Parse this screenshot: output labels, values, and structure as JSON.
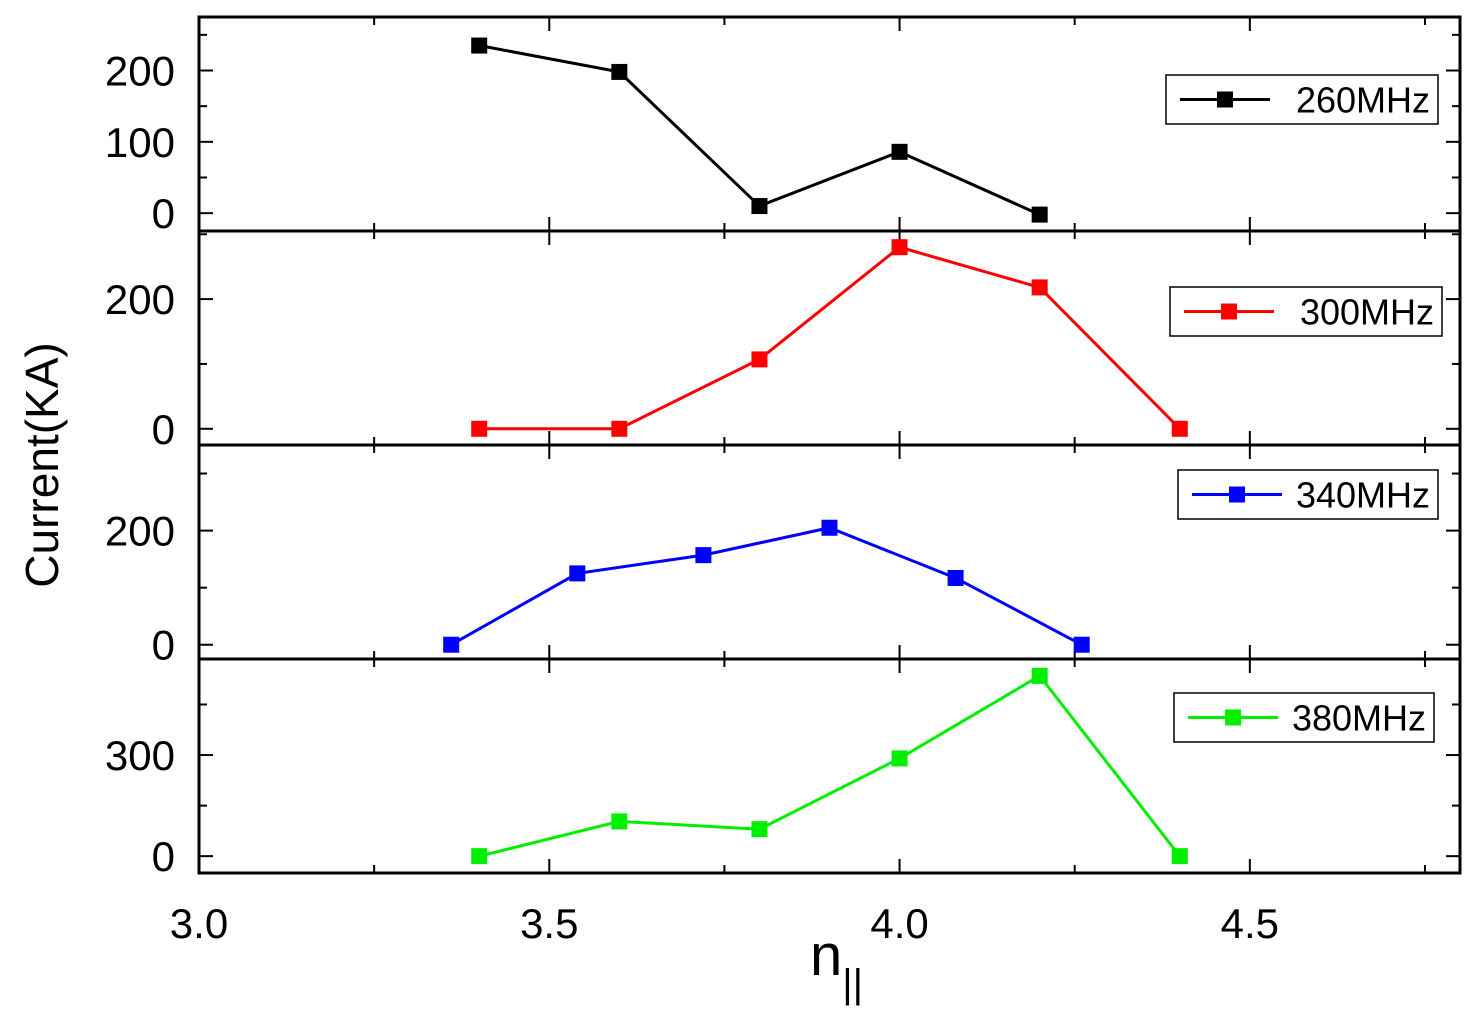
{
  "chart_data": {
    "type": "line",
    "layout": "stacked panels sharing x axis",
    "ylabel": "Current(KA)",
    "xlabel": "n",
    "xlabel_subscript": "||",
    "xlim": [
      3.0,
      4.8
    ],
    "xticks": [
      "3.0",
      "3.5",
      "4.0",
      "4.5"
    ],
    "grid": false,
    "legend_placement": "right",
    "marker": "square",
    "panels": [
      {
        "series": [
          {
            "name": "260MHz",
            "color": "#000000",
            "x": [
              3.4,
              3.6,
              3.8,
              4.0,
              4.2
            ],
            "y": [
              235,
              198,
              10,
              86,
              -2
            ]
          }
        ],
        "ylim": [
          -25,
          275
        ],
        "yticks": [
          "0",
          "100",
          "200"
        ]
      },
      {
        "series": [
          {
            "name": "300MHz",
            "color": "#ff0000",
            "x": [
              3.4,
              3.6,
              3.8,
              4.0,
              4.2,
              4.4
            ],
            "y": [
              0,
              0,
              107,
              280,
              218,
              0
            ]
          }
        ],
        "ylim": [
          -25,
          305
        ],
        "yticks": [
          "0",
          "200"
        ]
      },
      {
        "series": [
          {
            "name": "340MHz",
            "color": "#0000ff",
            "x": [
              3.36,
              3.54,
              3.72,
              3.9,
              4.08,
              4.26
            ],
            "y": [
              0,
              125,
              157,
              205,
              117,
              0
            ]
          }
        ],
        "ylim": [
          -25,
          350
        ],
        "yticks": [
          "0",
          "200"
        ]
      },
      {
        "series": [
          {
            "name": "380MHz",
            "color": "#00ee00",
            "x": [
              3.4,
              3.6,
              3.8,
              4.0,
              4.2,
              4.4
            ],
            "y": [
              0,
              103,
              80,
              290,
              535,
              0
            ]
          }
        ],
        "ylim": [
          -50,
          585
        ],
        "yticks": [
          "0",
          "300"
        ]
      }
    ]
  }
}
